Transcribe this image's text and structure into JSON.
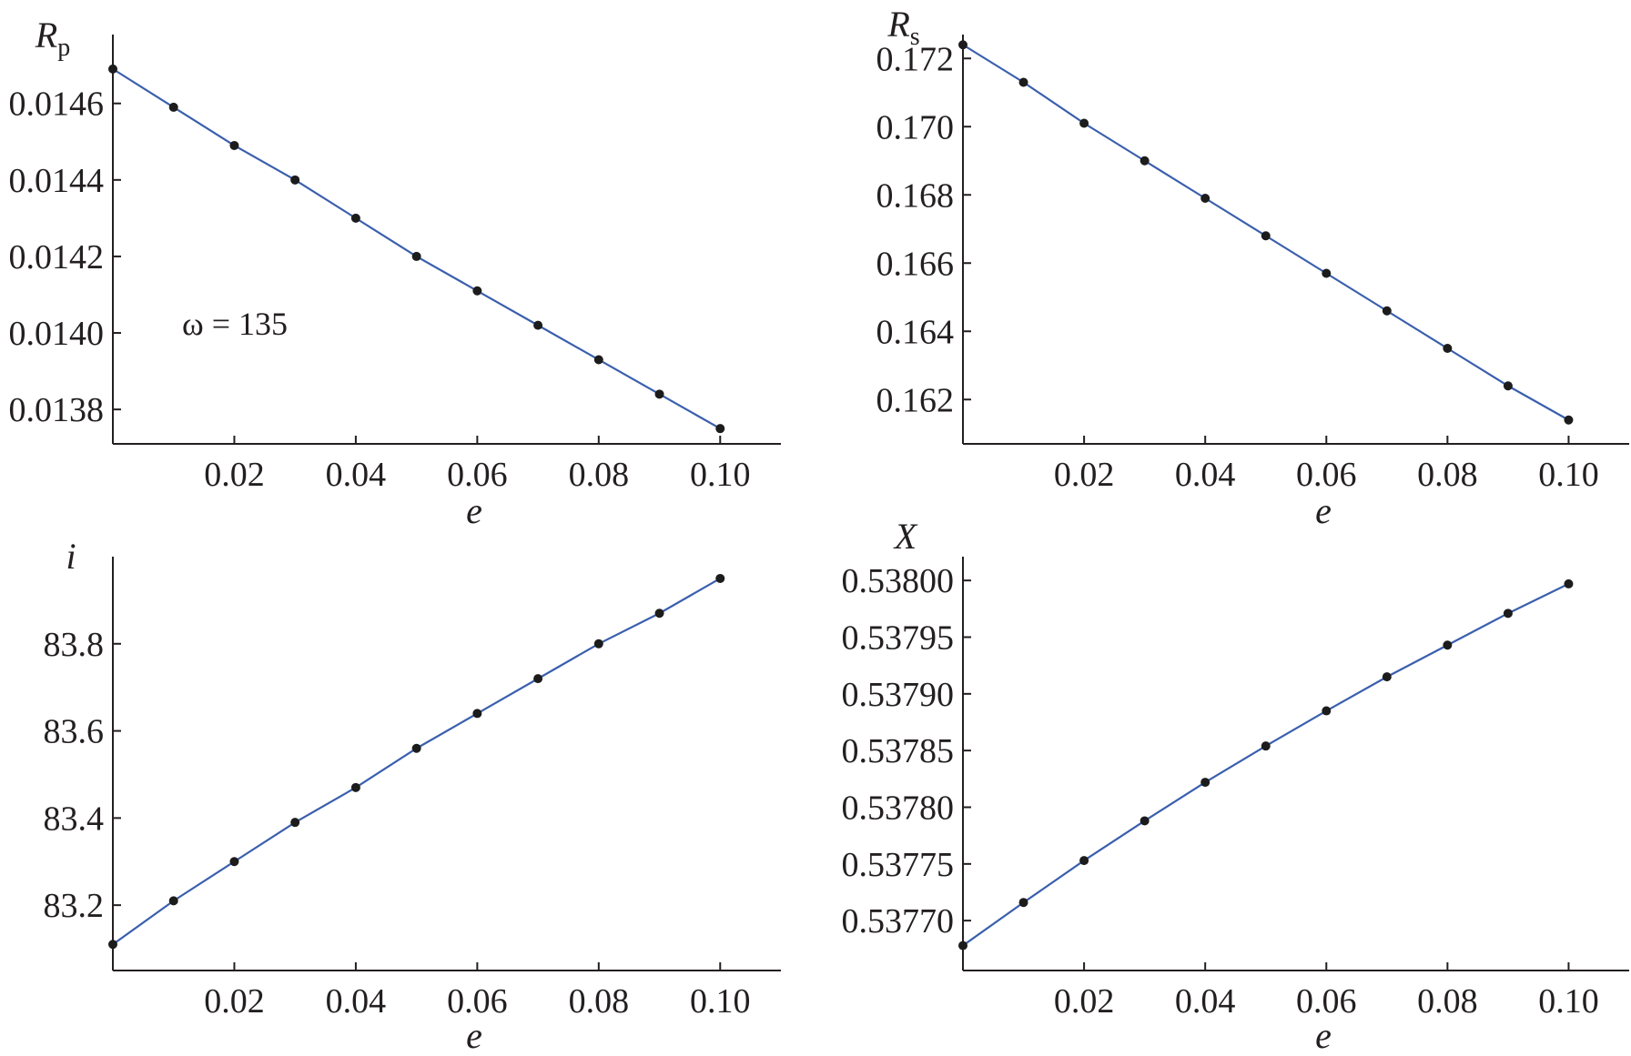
{
  "chart_data": [
    {
      "type": "line",
      "ylabel": "R",
      "ylabel_sub": "p",
      "xlabel": "e",
      "annotation": "ω = 135",
      "xlim": [
        0,
        0.11
      ],
      "ylim": [
        0.01371,
        0.01478
      ],
      "xticks": [
        {
          "value": 0.02,
          "label": "0.02"
        },
        {
          "value": 0.04,
          "label": "0.04"
        },
        {
          "value": 0.06,
          "label": "0.06"
        },
        {
          "value": 0.08,
          "label": "0.08"
        },
        {
          "value": 0.1,
          "label": "0.10"
        }
      ],
      "yticks": [
        {
          "value": 0.0138,
          "label": "0.0138"
        },
        {
          "value": 0.014,
          "label": "0.0140"
        },
        {
          "value": 0.0142,
          "label": "0.0142"
        },
        {
          "value": 0.0144,
          "label": "0.0144"
        },
        {
          "value": 0.0146,
          "label": "0.0146"
        }
      ],
      "series": [
        {
          "x": [
            0,
            0.01,
            0.02,
            0.03,
            0.04,
            0.05,
            0.06,
            0.07,
            0.08,
            0.09,
            0.1
          ],
          "y": [
            0.01469,
            0.01459,
            0.01449,
            0.0144,
            0.0143,
            0.0142,
            0.01411,
            0.01402,
            0.01393,
            0.01384,
            0.01375
          ]
        }
      ]
    },
    {
      "type": "line",
      "ylabel": "R",
      "ylabel_sub": "s",
      "xlabel": "e",
      "xlim": [
        0,
        0.11
      ],
      "ylim": [
        0.1607,
        0.1727
      ],
      "xticks": [
        {
          "value": 0.02,
          "label": "0.02"
        },
        {
          "value": 0.04,
          "label": "0.04"
        },
        {
          "value": 0.06,
          "label": "0.06"
        },
        {
          "value": 0.08,
          "label": "0.08"
        },
        {
          "value": 0.1,
          "label": "0.10"
        }
      ],
      "yticks": [
        {
          "value": 0.162,
          "label": "0.162"
        },
        {
          "value": 0.164,
          "label": "0.164"
        },
        {
          "value": 0.166,
          "label": "0.166"
        },
        {
          "value": 0.168,
          "label": "0.168"
        },
        {
          "value": 0.17,
          "label": "0.170"
        },
        {
          "value": 0.172,
          "label": "0.172"
        }
      ],
      "series": [
        {
          "x": [
            0,
            0.01,
            0.02,
            0.03,
            0.04,
            0.05,
            0.06,
            0.07,
            0.08,
            0.09,
            0.1
          ],
          "y": [
            0.1724,
            0.1713,
            0.1701,
            0.169,
            0.1679,
            0.1668,
            0.1657,
            0.1646,
            0.1635,
            0.1624,
            0.1614
          ]
        }
      ]
    },
    {
      "type": "line",
      "ylabel": "i",
      "xlabel": "e",
      "xlim": [
        0,
        0.11
      ],
      "ylim": [
        83.05,
        84.0
      ],
      "xticks": [
        {
          "value": 0.02,
          "label": "0.02"
        },
        {
          "value": 0.04,
          "label": "0.04"
        },
        {
          "value": 0.06,
          "label": "0.06"
        },
        {
          "value": 0.08,
          "label": "0.08"
        },
        {
          "value": 0.1,
          "label": "0.10"
        }
      ],
      "yticks": [
        {
          "value": 83.2,
          "label": "83.2"
        },
        {
          "value": 83.4,
          "label": "83.4"
        },
        {
          "value": 83.6,
          "label": "83.6"
        },
        {
          "value": 83.8,
          "label": "83.8"
        }
      ],
      "series": [
        {
          "x": [
            0,
            0.01,
            0.02,
            0.03,
            0.04,
            0.05,
            0.06,
            0.07,
            0.08,
            0.09,
            0.1
          ],
          "y": [
            83.11,
            83.21,
            83.3,
            83.39,
            83.47,
            83.56,
            83.64,
            83.72,
            83.8,
            83.87,
            83.95
          ]
        }
      ]
    },
    {
      "type": "line",
      "ylabel": "X",
      "xlabel": "e",
      "xlim": [
        0,
        0.11
      ],
      "ylim": [
        0.537656,
        0.538021
      ],
      "xticks": [
        {
          "value": 0.02,
          "label": "0.02"
        },
        {
          "value": 0.04,
          "label": "0.04"
        },
        {
          "value": 0.06,
          "label": "0.06"
        },
        {
          "value": 0.08,
          "label": "0.08"
        },
        {
          "value": 0.1,
          "label": "0.10"
        }
      ],
      "yticks": [
        {
          "value": 0.5377,
          "label": "0.53770"
        },
        {
          "value": 0.53775,
          "label": "0.53775"
        },
        {
          "value": 0.5378,
          "label": "0.53780"
        },
        {
          "value": 0.53785,
          "label": "0.53785"
        },
        {
          "value": 0.5379,
          "label": "0.53790"
        },
        {
          "value": 0.53795,
          "label": "0.53795"
        },
        {
          "value": 0.538,
          "label": "0.53800"
        }
      ],
      "series": [
        {
          "x": [
            0,
            0.01,
            0.02,
            0.03,
            0.04,
            0.05,
            0.06,
            0.07,
            0.08,
            0.09,
            0.1
          ],
          "y": [
            0.537678,
            0.537716,
            0.537753,
            0.537788,
            0.537822,
            0.537854,
            0.537885,
            0.537915,
            0.537943,
            0.537971,
            0.537997
          ]
        }
      ]
    }
  ]
}
